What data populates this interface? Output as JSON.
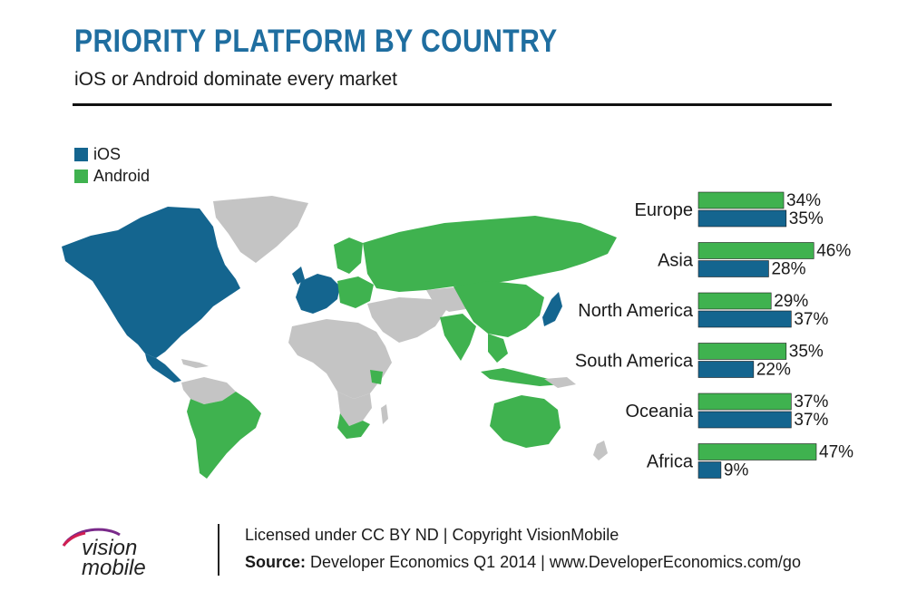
{
  "header": {
    "title": "PRIORITY PLATFORM BY COUNTRY",
    "subtitle": "iOS or Android dominate every market"
  },
  "colors": {
    "ios": "#14658f",
    "android": "#3fb24f",
    "land_other": "#c4c4c4",
    "title": "#1f6ea0"
  },
  "legend": [
    {
      "label": "iOS",
      "color": "#14658f"
    },
    {
      "label": "Android",
      "color": "#3fb24f"
    }
  ],
  "chart_data": {
    "type": "bar",
    "orientation": "horizontal",
    "categories": [
      "Europe",
      "Asia",
      "North America",
      "South America",
      "Oceania",
      "Africa"
    ],
    "series": [
      {
        "name": "Android",
        "values": [
          34,
          46,
          29,
          35,
          37,
          47
        ],
        "labels": [
          "34%",
          "46%",
          "29%",
          "35%",
          "37%",
          "47%"
        ]
      },
      {
        "name": "iOS",
        "values": [
          35,
          28,
          37,
          22,
          37,
          9
        ],
        "labels": [
          "35%",
          "28%",
          "37%",
          "22%",
          "37%",
          "9%"
        ]
      }
    ],
    "xlim": [
      0,
      47
    ],
    "grid": false,
    "legend": "top-left"
  },
  "map": {
    "ios_regions": [
      "north-america",
      "western-europe",
      "japan"
    ],
    "android_regions": [
      "south-america",
      "russia",
      "china",
      "india",
      "australia",
      "southern-africa",
      "eastern-europe",
      "southeast-asia"
    ]
  },
  "footer": {
    "logo_top": "vision",
    "logo_bottom": "mobile",
    "license": "Licensed under CC BY ND | Copyright VisionMobile",
    "source_label": "Source:",
    "source_text": " Developer Economics Q1 2014 | www.DeveloperEconomics.com/go"
  }
}
